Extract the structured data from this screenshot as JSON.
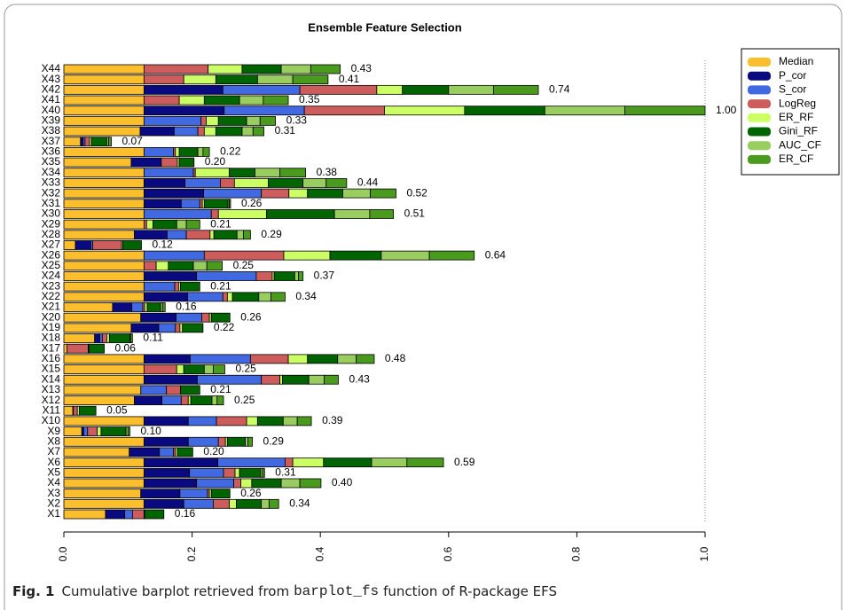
{
  "chart_data": {
    "type": "stacked_barh",
    "title": "Ensemble Feature Selection",
    "categories": [
      "X1",
      "X2",
      "X3",
      "X4",
      "X5",
      "X6",
      "X7",
      "X8",
      "X9",
      "X10",
      "X11",
      "X12",
      "X13",
      "X14",
      "X15",
      "X16",
      "X17",
      "X18",
      "X19",
      "X20",
      "X21",
      "X22",
      "X23",
      "X24",
      "X25",
      "X26",
      "X27",
      "X28",
      "X29",
      "X30",
      "X31",
      "X32",
      "X33",
      "X34",
      "X35",
      "X36",
      "X37",
      "X38",
      "X39",
      "X40",
      "X41",
      "X42",
      "X43",
      "X44"
    ],
    "series": [
      {
        "name": "Median",
        "color": "#fbbf2e",
        "values": [
          0.065,
          0.125,
          0.12,
          0.125,
          0.125,
          0.125,
          0.102,
          0.125,
          0.028,
          0.125,
          0.014,
          0.11,
          0.12,
          0.125,
          0.125,
          0.125,
          0.005,
          0.048,
          0.105,
          0.12,
          0.076,
          0.125,
          0.125,
          0.125,
          0.125,
          0.125,
          0.018,
          0.11,
          0.125,
          0.125,
          0.125,
          0.125,
          0.125,
          0.125,
          0.105,
          0.125,
          0.026,
          0.119,
          0.125,
          0.125,
          0.125,
          0.125,
          0.125,
          0.125
        ]
      },
      {
        "name": "P_cor",
        "color": "#0a0a80",
        "values": [
          0.03,
          0.062,
          0.061,
          0.082,
          0.071,
          0.115,
          0.047,
          0.069,
          0.003,
          0.069,
          0.001,
          0.043,
          0,
          0.083,
          0,
          0.072,
          0,
          0.008,
          0.043,
          0.055,
          0.03,
          0.068,
          0,
          0.082,
          0,
          0,
          0.024,
          0.051,
          0,
          0,
          0.058,
          0.093,
          0.064,
          0,
          0.047,
          0,
          0.004,
          0.053,
          0,
          0.125,
          0,
          0.123,
          0,
          0
        ]
      },
      {
        "name": "S_cor",
        "color": "#4169e1",
        "values": [
          0.012,
          0.046,
          0.043,
          0.058,
          0.053,
          0.105,
          0.022,
          0.047,
          0.006,
          0.044,
          0,
          0.03,
          0.04,
          0.1,
          0,
          0.094,
          0,
          0.004,
          0.026,
          0.04,
          0.017,
          0.055,
          0.048,
          0.093,
          0,
          0.094,
          0.003,
          0.03,
          0,
          0.105,
          0.029,
          0.09,
          0.055,
          0.077,
          0,
          0.046,
          0.003,
          0.037,
          0.089,
          0.125,
          0,
          0.12,
          0,
          0
        ]
      },
      {
        "name": "LogReg",
        "color": "#cd5c5c",
        "values": [
          0.018,
          0.025,
          0.003,
          0.011,
          0.018,
          0.012,
          0.003,
          0.011,
          0.015,
          0.047,
          0.006,
          0.011,
          0.022,
          0.029,
          0.051,
          0.059,
          0.033,
          0.007,
          0.007,
          0.012,
          0.003,
          0.007,
          0.006,
          0.025,
          0.019,
          0.124,
          0.045,
          0.037,
          0.004,
          0.011,
          0.004,
          0.043,
          0.022,
          0.003,
          0.025,
          0.003,
          0.007,
          0.01,
          0.008,
          0.125,
          0.055,
          0.12,
          0.062,
          0.1
        ]
      },
      {
        "name": "ER_RF",
        "color": "#ccff66",
        "values": [
          0.001,
          0.011,
          0.003,
          0.017,
          0.007,
          0.048,
          0.003,
          0.003,
          0.006,
          0.017,
          0.003,
          0.004,
          0,
          0.004,
          0.011,
          0.03,
          0.001,
          0.004,
          0.004,
          0.003,
          0.004,
          0.008,
          0.003,
          0.003,
          0.019,
          0.072,
          0.002,
          0.006,
          0.01,
          0.075,
          0.003,
          0.029,
          0.053,
          0.053,
          0.003,
          0.006,
          0.003,
          0.018,
          0.019,
          0.125,
          0.039,
          0.04,
          0.05,
          0.053
        ]
      },
      {
        "name": "Gini_RF",
        "color": "#006400",
        "values": [
          0.03,
          0.039,
          0.029,
          0.046,
          0.033,
          0.075,
          0.024,
          0.028,
          0.039,
          0.04,
          0.026,
          0.033,
          0.03,
          0.041,
          0.032,
          0.047,
          0.024,
          0.032,
          0.032,
          0.029,
          0.021,
          0.041,
          0.03,
          0.032,
          0.039,
          0.08,
          0.029,
          0.036,
          0.037,
          0.106,
          0.037,
          0.055,
          0.054,
          0.04,
          0.023,
          0.029,
          0.024,
          0.041,
          0.044,
          0.125,
          0.055,
          0.072,
          0.065,
          0.061
        ]
      },
      {
        "name": "AUC_CF",
        "color": "#9acd60",
        "values": [
          0,
          0.012,
          0,
          0.029,
          0.003,
          0.055,
          0,
          0.004,
          0.003,
          0.022,
          0,
          0.008,
          0,
          0.024,
          0.014,
          0.029,
          0,
          0.001,
          0,
          0,
          0.003,
          0.019,
          0,
          0.006,
          0.021,
          0.075,
          0,
          0.01,
          0.015,
          0.055,
          0.002,
          0.043,
          0.036,
          0.039,
          0,
          0.008,
          0.003,
          0.017,
          0.021,
          0.125,
          0.037,
          0.07,
          0.055,
          0.046
        ]
      },
      {
        "name": "ER_CF",
        "color": "#4a9a1e",
        "values": [
          0,
          0.015,
          0,
          0.033,
          0.003,
          0.057,
          0,
          0.007,
          0.003,
          0.022,
          0,
          0.01,
          0,
          0.022,
          0.018,
          0.028,
          0,
          0.003,
          0,
          0,
          0.004,
          0.022,
          0,
          0.007,
          0.024,
          0.07,
          0,
          0.011,
          0.021,
          0.037,
          0.002,
          0.04,
          0.032,
          0.04,
          0,
          0.01,
          0.004,
          0.017,
          0.024,
          0.125,
          0.039,
          0.07,
          0.055,
          0.046
        ]
      }
    ],
    "total_labels": [
      "0.16",
      "0.34",
      "0.26",
      "0.40",
      "0.31",
      "0.59",
      "0.20",
      "0.29",
      "0.10",
      "0.39",
      "0.05",
      "0.25",
      "0.21",
      "0.43",
      "0.25",
      "0.48",
      "0.06",
      "0.11",
      "0.22",
      "0.26",
      "0.16",
      "0.34",
      "0.21",
      "0.37",
      "0.25",
      "0.64",
      "0.12",
      "0.29",
      "0.21",
      "0.51",
      "0.26",
      "0.52",
      "0.44",
      "0.38",
      "0.20",
      "0.22",
      "0.07",
      "0.31",
      "0.33",
      "1.00",
      "0.35",
      "0.74",
      "0.41",
      "0.43"
    ],
    "xlim": [
      0,
      1
    ],
    "xticks": [
      {
        "value": 0,
        "label": "0.0"
      },
      {
        "value": 0.2,
        "label": "0.2"
      },
      {
        "value": 0.4,
        "label": "0.4"
      },
      {
        "value": 0.6,
        "label": "0.6"
      },
      {
        "value": 0.8,
        "label": "0.8"
      },
      {
        "value": 1,
        "label": "1.0"
      }
    ],
    "legend": "top-right"
  },
  "caption": {
    "label": "Fig. 1",
    "text_before": "Cumulative barplot retrieved from",
    "code": "barplot_fs",
    "text_after": "function of R-package EFS"
  }
}
